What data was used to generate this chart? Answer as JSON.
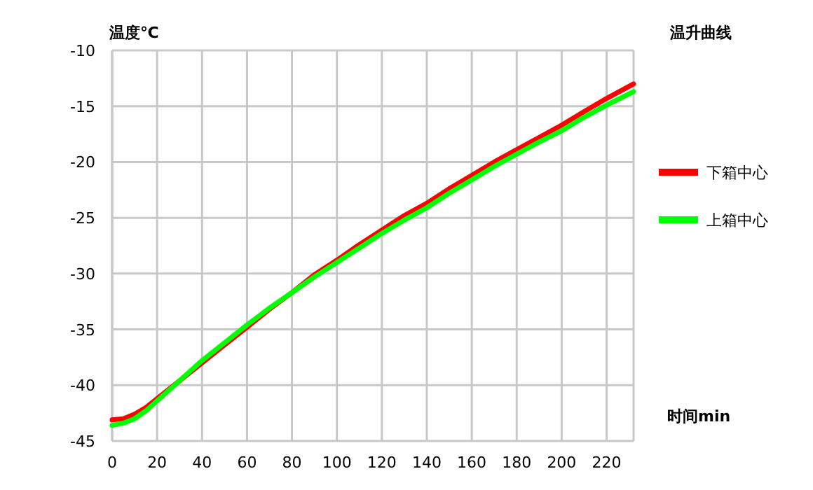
{
  "chart_data": {
    "type": "line",
    "title": "温升曲线",
    "ylabel": "温度℃",
    "xlabel": "时间min",
    "xlim": [
      0,
      232
    ],
    "xticks": [
      0,
      20,
      40,
      60,
      80,
      100,
      120,
      140,
      160,
      180,
      200,
      220
    ],
    "ylim": [
      -45,
      -10
    ],
    "yticks": [
      -45,
      -40,
      -35,
      -30,
      -25,
      -20,
      -15,
      -10
    ],
    "grid": true,
    "legend": "right",
    "line_style": "solid",
    "series": [
      {
        "name": "下箱中心",
        "color": "#ff0000",
        "x": [
          0,
          5,
          10,
          15,
          20,
          30,
          40,
          50,
          60,
          70,
          80,
          90,
          100,
          110,
          120,
          130,
          140,
          150,
          160,
          170,
          180,
          190,
          200,
          210,
          220,
          232
        ],
        "values": [
          -43.1,
          -43.0,
          -42.6,
          -42.0,
          -41.2,
          -39.6,
          -38.0,
          -36.4,
          -34.8,
          -33.2,
          -31.7,
          -30.1,
          -28.8,
          -27.4,
          -26.1,
          -24.8,
          -23.7,
          -22.4,
          -21.2,
          -20.0,
          -18.9,
          -17.8,
          -16.7,
          -15.5,
          -14.3,
          -13.0
        ]
      },
      {
        "name": "上箱中心",
        "color": "#00ff00",
        "x": [
          0,
          5,
          10,
          15,
          20,
          30,
          40,
          50,
          60,
          70,
          80,
          90,
          100,
          110,
          120,
          130,
          140,
          150,
          160,
          170,
          180,
          190,
          200,
          210,
          220,
          232
        ],
        "values": [
          -43.6,
          -43.4,
          -43.0,
          -42.3,
          -41.4,
          -39.6,
          -37.8,
          -36.2,
          -34.6,
          -33.1,
          -31.7,
          -30.3,
          -29.0,
          -27.7,
          -26.4,
          -25.2,
          -24.1,
          -22.8,
          -21.6,
          -20.4,
          -19.3,
          -18.2,
          -17.2,
          -16.0,
          -14.9,
          -13.7
        ]
      }
    ]
  }
}
